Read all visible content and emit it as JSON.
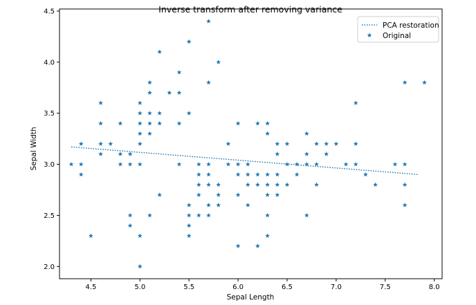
{
  "chart_data": {
    "type": "scatter",
    "title": "Inverse transform after removing variance",
    "xlabel": "Sepal Length",
    "ylabel": "Sepal Width",
    "xlim": [
      4.18,
      8.08
    ],
    "ylim": [
      1.88,
      4.52
    ],
    "xticks": [
      "4.5",
      "5.0",
      "5.5",
      "6.0",
      "6.5",
      "7.0",
      "7.5",
      "8.0"
    ],
    "yticks": [
      "2.0",
      "2.5",
      "3.0",
      "3.5",
      "4.0",
      "4.5"
    ],
    "grid": false,
    "legend_position": "top-right",
    "colors": {
      "series": "#1f77b4"
    },
    "series": [
      {
        "name": "PCA restoration",
        "type": "line",
        "style": "dotted",
        "x": [
          4.3,
          7.84
        ],
        "y": [
          3.17,
          2.9
        ]
      },
      {
        "name": "Original",
        "type": "scatter",
        "marker": "star",
        "points": [
          [
            4.3,
            3.0
          ],
          [
            4.4,
            2.9
          ],
          [
            4.4,
            3.0
          ],
          [
            4.4,
            3.2
          ],
          [
            4.5,
            2.3
          ],
          [
            4.6,
            3.1
          ],
          [
            4.6,
            3.2
          ],
          [
            4.6,
            3.4
          ],
          [
            4.6,
            3.6
          ],
          [
            4.7,
            3.2
          ],
          [
            4.8,
            3.0
          ],
          [
            4.8,
            3.1
          ],
          [
            4.8,
            3.4
          ],
          [
            4.9,
            2.4
          ],
          [
            4.9,
            2.5
          ],
          [
            4.9,
            3.0
          ],
          [
            4.9,
            3.1
          ],
          [
            5.0,
            2.0
          ],
          [
            5.0,
            2.3
          ],
          [
            5.0,
            3.0
          ],
          [
            5.0,
            3.2
          ],
          [
            5.0,
            3.3
          ],
          [
            5.0,
            3.4
          ],
          [
            5.0,
            3.5
          ],
          [
            5.0,
            3.6
          ],
          [
            5.1,
            2.5
          ],
          [
            5.1,
            3.3
          ],
          [
            5.1,
            3.4
          ],
          [
            5.1,
            3.5
          ],
          [
            5.1,
            3.7
          ],
          [
            5.1,
            3.8
          ],
          [
            5.2,
            2.7
          ],
          [
            5.2,
            3.4
          ],
          [
            5.2,
            3.5
          ],
          [
            5.2,
            4.1
          ],
          [
            5.3,
            3.7
          ],
          [
            5.4,
            3.0
          ],
          [
            5.4,
            3.4
          ],
          [
            5.4,
            3.7
          ],
          [
            5.4,
            3.9
          ],
          [
            5.5,
            2.3
          ],
          [
            5.5,
            2.4
          ],
          [
            5.5,
            2.5
          ],
          [
            5.5,
            2.6
          ],
          [
            5.5,
            3.5
          ],
          [
            5.5,
            4.2
          ],
          [
            5.6,
            2.5
          ],
          [
            5.6,
            2.7
          ],
          [
            5.6,
            2.8
          ],
          [
            5.6,
            2.9
          ],
          [
            5.6,
            3.0
          ],
          [
            5.7,
            2.5
          ],
          [
            5.7,
            2.6
          ],
          [
            5.7,
            2.8
          ],
          [
            5.7,
            2.9
          ],
          [
            5.7,
            3.0
          ],
          [
            5.7,
            3.8
          ],
          [
            5.7,
            4.4
          ],
          [
            5.8,
            2.6
          ],
          [
            5.8,
            2.7
          ],
          [
            5.8,
            2.8
          ],
          [
            5.8,
            4.0
          ],
          [
            5.9,
            3.0
          ],
          [
            5.9,
            3.2
          ],
          [
            6.0,
            2.2
          ],
          [
            6.0,
            2.7
          ],
          [
            6.0,
            2.9
          ],
          [
            6.0,
            3.0
          ],
          [
            6.0,
            3.4
          ],
          [
            6.1,
            2.6
          ],
          [
            6.1,
            2.8
          ],
          [
            6.1,
            2.9
          ],
          [
            6.1,
            3.0
          ],
          [
            6.2,
            2.2
          ],
          [
            6.2,
            2.8
          ],
          [
            6.2,
            2.9
          ],
          [
            6.2,
            3.4
          ],
          [
            6.3,
            2.3
          ],
          [
            6.3,
            2.5
          ],
          [
            6.3,
            2.7
          ],
          [
            6.3,
            2.8
          ],
          [
            6.3,
            2.9
          ],
          [
            6.3,
            3.3
          ],
          [
            6.3,
            3.4
          ],
          [
            6.4,
            2.7
          ],
          [
            6.4,
            2.8
          ],
          [
            6.4,
            2.9
          ],
          [
            6.4,
            3.1
          ],
          [
            6.4,
            3.2
          ],
          [
            6.5,
            2.8
          ],
          [
            6.5,
            3.0
          ],
          [
            6.5,
            3.2
          ],
          [
            6.6,
            2.9
          ],
          [
            6.6,
            3.0
          ],
          [
            6.7,
            2.5
          ],
          [
            6.7,
            3.0
          ],
          [
            6.7,
            3.1
          ],
          [
            6.7,
            3.3
          ],
          [
            6.8,
            2.8
          ],
          [
            6.8,
            3.0
          ],
          [
            6.8,
            3.2
          ],
          [
            6.9,
            3.1
          ],
          [
            6.9,
            3.2
          ],
          [
            7.0,
            3.2
          ],
          [
            7.1,
            3.0
          ],
          [
            7.2,
            3.0
          ],
          [
            7.2,
            3.2
          ],
          [
            7.2,
            3.6
          ],
          [
            7.3,
            2.9
          ],
          [
            7.4,
            2.8
          ],
          [
            7.6,
            3.0
          ],
          [
            7.7,
            2.6
          ],
          [
            7.7,
            2.8
          ],
          [
            7.7,
            3.0
          ],
          [
            7.7,
            3.8
          ],
          [
            7.9,
            3.8
          ]
        ]
      }
    ]
  }
}
